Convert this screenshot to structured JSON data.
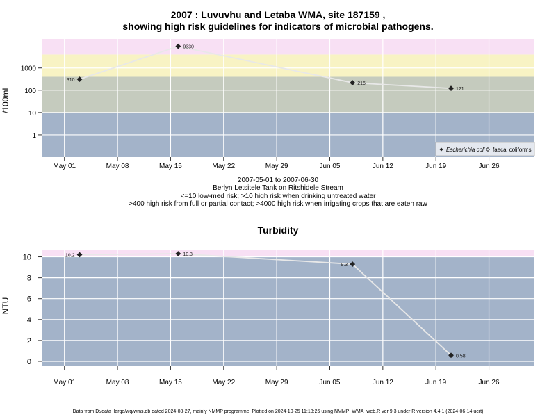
{
  "titles": {
    "main_line1": "2007 : Luvuvhu and Letaba WMA, site 187159 ,",
    "main_line2": "showing high risk guidelines for indicators of microbial pathogens.",
    "turbidity": "Turbidity"
  },
  "captions": {
    "date_range": "2007-05-01 to 2007-06-30",
    "site_name": "Berlyn Letsitele Tank on Ritshidele Stream",
    "risk_line1": "<=10 low-med risk; >10 high risk when drinking untreated water",
    "risk_line2": ">400 high risk from full or partial contact; >4000 high risk when irrigating crops that are eaten raw"
  },
  "footer": "Data from D:/data_large/wq/wms.db dated 2024-08-27, mainly NMMP programme. Plotted on 2024-10-25 11:18:26 using NMMP_WMA_web.R ver 9.3 under R version 4.4.1 (2024-06-14 ucrt)",
  "chart_data": [
    {
      "type": "line",
      "ylabel": "/100mL",
      "yscale": "log",
      "ylim": [
        0.1,
        20000
      ],
      "xlim": [
        "2007-04-28",
        "2007-07-02"
      ],
      "x_ticks": [
        "May 01",
        "May 08",
        "May 15",
        "May 22",
        "May 29",
        "Jun 05",
        "Jun 12",
        "Jun 19",
        "Jun 26"
      ],
      "y_ticks": [
        "1",
        "10",
        "100",
        "1000"
      ],
      "bands": [
        {
          "from": 0.1,
          "to": 10,
          "color": "#a3b3c9"
        },
        {
          "from": 10,
          "to": 400,
          "color": "#c5cbbe"
        },
        {
          "from": 400,
          "to": 4000,
          "color": "#f8f3c4"
        },
        {
          "from": 4000,
          "to": 20000,
          "color": "#f8e0f4"
        }
      ],
      "legend": {
        "position": "bottom-right",
        "entries": [
          "Escherichia coli",
          "faecal coliforms"
        ]
      },
      "series": [
        {
          "name": "Escherichia coli",
          "x": [
            "2007-05-03",
            "2007-05-16",
            "2007-06-08",
            "2007-06-21"
          ],
          "values": [
            310,
            9330,
            216,
            121
          ],
          "labels": [
            "310",
            "9330",
            "216",
            "121"
          ]
        }
      ]
    },
    {
      "type": "line",
      "title": "Turbidity",
      "ylabel": "NTU",
      "ylim": [
        -0.4,
        10.7
      ],
      "xlim": [
        "2007-04-28",
        "2007-07-02"
      ],
      "x_ticks": [
        "May 01",
        "May 08",
        "May 15",
        "May 22",
        "May 29",
        "Jun 05",
        "Jun 12",
        "Jun 19",
        "Jun 26"
      ],
      "y_ticks": [
        "0",
        "2",
        "4",
        "6",
        "8",
        "10"
      ],
      "bands": [
        {
          "from": -0.4,
          "to": 10,
          "color": "#a3b3c9"
        },
        {
          "from": 10,
          "to": 10.7,
          "color": "#f8e0f4"
        }
      ],
      "series": [
        {
          "x": [
            "2007-05-03",
            "2007-05-16",
            "2007-06-08",
            "2007-06-21"
          ],
          "values": [
            10.2,
            10.3,
            9.3,
            0.58
          ],
          "labels": [
            "10.2",
            "10.3",
            "9.3",
            "0.58"
          ]
        }
      ]
    }
  ]
}
